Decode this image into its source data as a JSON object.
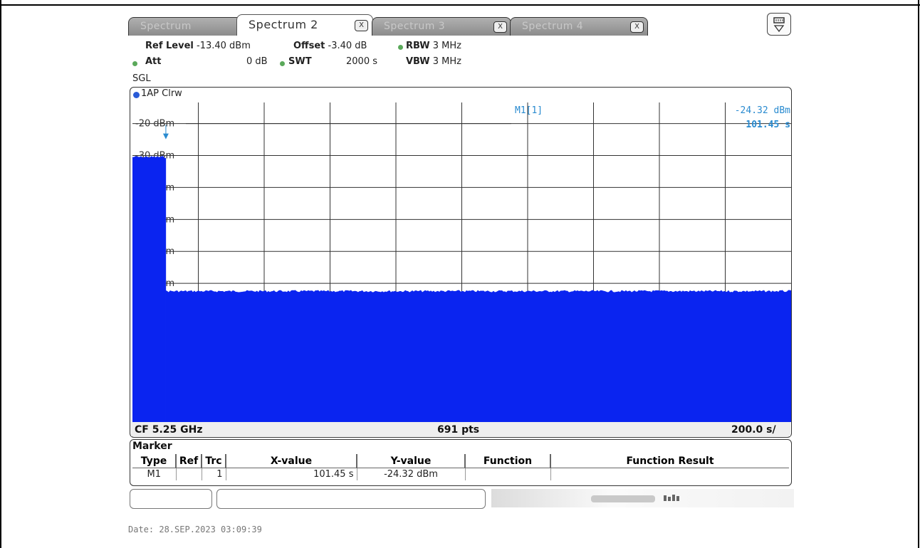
{
  "tabs": [
    {
      "label": "Spectrum",
      "active": false,
      "close": ""
    },
    {
      "label": "Spectrum 2",
      "active": true,
      "close": "X"
    },
    {
      "label": "Spectrum 3",
      "active": false,
      "close": "X"
    },
    {
      "label": "Spectrum 4",
      "active": false,
      "close": "X"
    }
  ],
  "header": {
    "ref_level_label": "Ref Level",
    "ref_level_value": "-13.40 dBm",
    "offset_label": "Offset",
    "offset_value": "-3.40 dB",
    "rbw_label": "RBW",
    "rbw_value": "3 MHz",
    "att_label": "Att",
    "att_value": "0 dB",
    "swt_label": "SWT",
    "swt_value": "2000 s",
    "vbw_label": "VBW",
    "vbw_value": "3 MHz",
    "mode": "SGL"
  },
  "trace": {
    "label": "1AP Clrw"
  },
  "marker_readout": {
    "name": "M1[1]",
    "level": "-24.32 dBm",
    "time": "101.45 s"
  },
  "axis": {
    "y_labels": [
      "-20 dBm",
      "-30 dBm",
      "-40 dBm",
      "-50 dBm",
      "-60 dBm",
      "-70 dBm"
    ],
    "cf": "CF 5.25 GHz",
    "points": "691 pts",
    "span_per_div": "200.0 s/"
  },
  "chart_data": {
    "type": "area",
    "x": {
      "start_s": 0,
      "end_s": 2000,
      "div_s": 200
    },
    "y": {
      "top_dBm": -13.4,
      "div_dB": 10
    },
    "segments": [
      {
        "x_start_s": 0,
        "x_end_s": 101.45,
        "level_dBm": -30.5
      },
      {
        "x_start_s": 101.45,
        "x_end_s": 2000,
        "level_dBm": -72.5
      }
    ],
    "marker": {
      "x_s": 101.45,
      "y_dBm": -24.32
    },
    "threshold_line_dBm": -20,
    "color": "#0a24f0"
  },
  "marker_table": {
    "title": "Marker",
    "headers": [
      "Type",
      "Ref",
      "Trc",
      "X-value",
      "Y-value",
      "Function",
      "Function Result"
    ],
    "rows": [
      [
        "M1",
        "",
        "1",
        "101.45 s",
        "-24.32 dBm",
        "",
        ""
      ]
    ]
  },
  "footer": {
    "date": "Date: 28.SEP.2023  03:09:39"
  }
}
